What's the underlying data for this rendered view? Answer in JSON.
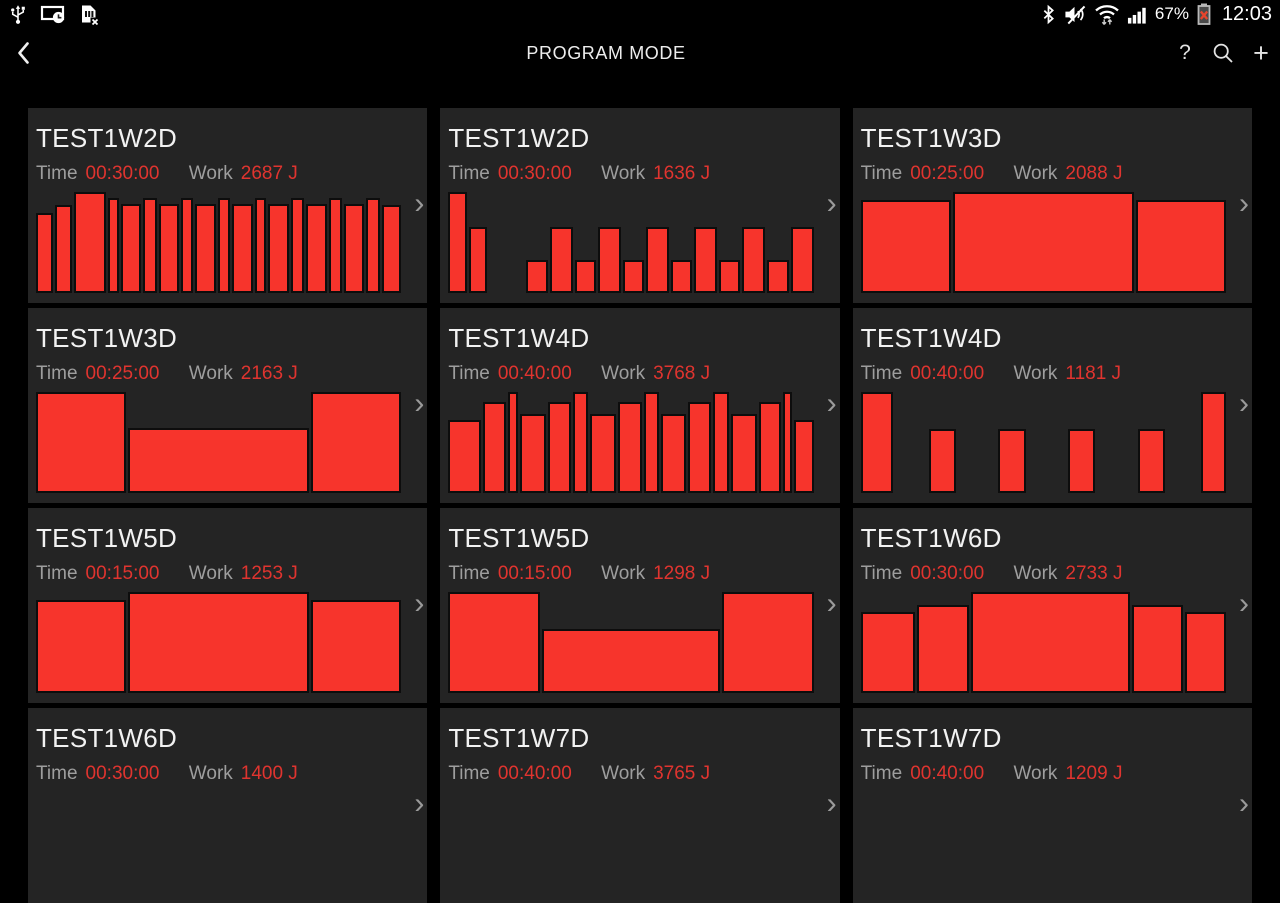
{
  "status_bar": {
    "battery_percent": "67%",
    "clock": "12:03",
    "left_icons": [
      "usb-icon",
      "screen-timeout-icon",
      "sim-missing-icon"
    ],
    "right_icons": [
      "bluetooth-icon",
      "mute-icon",
      "wifi-icon",
      "signal-icon",
      "battery-error-icon"
    ]
  },
  "action_bar": {
    "title": "PROGRAM MODE",
    "help_glyph": "?",
    "add_glyph": "+"
  },
  "labels": {
    "time": "Time",
    "work": "Work"
  },
  "chevron_glyph": "›",
  "colors": {
    "bar_fill": "#f7342c",
    "value_red": "#e0342f",
    "card_bg": "#242424",
    "battery_x": "#e8442c"
  },
  "cards": [
    {
      "title": "TEST1W2D",
      "time": "00:30:00",
      "work": "2687 J",
      "bars": [
        [
          1,
          0.79
        ],
        [
          1,
          0.87
        ],
        [
          2.1,
          1.0
        ],
        [
          0.55,
          0.94
        ],
        [
          1.25,
          0.88
        ],
        [
          0.75,
          0.94
        ],
        [
          1.2,
          0.88
        ],
        [
          0.6,
          0.94
        ],
        [
          1.3,
          0.88
        ],
        [
          0.65,
          0.94
        ],
        [
          1.25,
          0.88
        ],
        [
          0.6,
          0.94
        ],
        [
          1.3,
          0.88
        ],
        [
          0.65,
          0.94
        ],
        [
          1.3,
          0.88
        ],
        [
          0.7,
          0.94
        ],
        [
          1.25,
          0.88
        ],
        [
          0.7,
          0.94
        ],
        [
          1.2,
          0.87
        ]
      ]
    },
    {
      "title": "TEST1W2D",
      "time": "00:30:00",
      "work": "1636 J",
      "bars": [
        [
          1.05,
          1.0
        ],
        [
          1.05,
          0.65
        ],
        [
          2.3,
          0
        ],
        [
          1.25,
          0.33
        ],
        [
          1.4,
          0.65
        ],
        [
          1.25,
          0.33
        ],
        [
          1.4,
          0.65
        ],
        [
          1.25,
          0.33
        ],
        [
          1.4,
          0.65
        ],
        [
          1.25,
          0.33
        ],
        [
          1.4,
          0.65
        ],
        [
          1.25,
          0.33
        ],
        [
          1.4,
          0.65
        ],
        [
          1.25,
          0.33
        ],
        [
          1.4,
          0.65
        ]
      ]
    },
    {
      "title": "TEST1W3D",
      "time": "00:25:00",
      "work": "2088 J",
      "bars": [
        [
          25,
          0.92
        ],
        [
          51,
          1.0
        ],
        [
          25,
          0.92
        ]
      ]
    },
    {
      "title": "TEST1W3D",
      "time": "00:25:00",
      "work": "2163 J",
      "bars": [
        [
          25,
          1.0
        ],
        [
          51,
          0.64
        ],
        [
          25,
          1.0
        ]
      ]
    },
    {
      "title": "TEST1W4D",
      "time": "00:40:00",
      "work": "3768 J",
      "bars": [
        [
          2.6,
          0.72
        ],
        [
          1.7,
          0.9
        ],
        [
          0.5,
          1.0
        ],
        [
          2.0,
          0.78
        ],
        [
          1.7,
          0.9
        ],
        [
          1.0,
          1.0
        ],
        [
          2.0,
          0.78
        ],
        [
          1.8,
          0.9
        ],
        [
          1.0,
          1.0
        ],
        [
          1.9,
          0.78
        ],
        [
          1.7,
          0.9
        ],
        [
          1.0,
          1.0
        ],
        [
          2.0,
          0.78
        ],
        [
          1.6,
          0.9
        ],
        [
          0.5,
          1.0
        ],
        [
          1.4,
          0.72
        ]
      ]
    },
    {
      "title": "TEST1W4D",
      "time": "00:40:00",
      "work": "1181 J",
      "bars": [
        [
          2.4,
          1.0
        ],
        [
          2.3,
          0
        ],
        [
          1.9,
          0.63
        ],
        [
          2.9,
          0
        ],
        [
          2.0,
          0.63
        ],
        [
          2.8,
          0
        ],
        [
          1.9,
          0.63
        ],
        [
          2.9,
          0
        ],
        [
          2.0,
          0.63
        ],
        [
          2.3,
          0
        ],
        [
          1.75,
          1.0
        ]
      ]
    },
    {
      "title": "TEST1W5D",
      "time": "00:15:00",
      "work": "1253 J",
      "bars": [
        [
          25,
          0.92
        ],
        [
          51,
          1.0
        ],
        [
          25,
          0.92
        ]
      ]
    },
    {
      "title": "TEST1W5D",
      "time": "00:15:00",
      "work": "1298 J",
      "bars": [
        [
          25,
          1.0
        ],
        [
          50,
          0.63
        ],
        [
          25,
          1.0
        ]
      ]
    },
    {
      "title": "TEST1W6D",
      "time": "00:30:00",
      "work": "2733 J",
      "bars": [
        [
          15,
          0.8
        ],
        [
          14,
          0.87
        ],
        [
          46,
          1.0
        ],
        [
          14,
          0.87
        ],
        [
          11,
          0.8
        ]
      ]
    },
    {
      "title": "TEST1W6D",
      "time": "00:30:00",
      "work": "1400 J",
      "bars": []
    },
    {
      "title": "TEST1W7D",
      "time": "00:40:00",
      "work": "3765 J",
      "bars": []
    },
    {
      "title": "TEST1W7D",
      "time": "00:40:00",
      "work": "1209 J",
      "bars": []
    }
  ]
}
